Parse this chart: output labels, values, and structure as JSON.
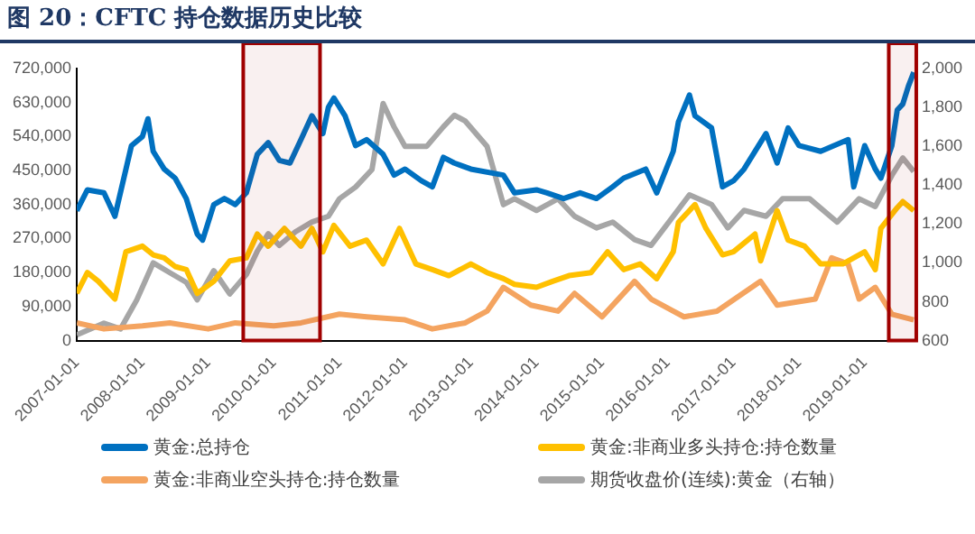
{
  "chart_data": {
    "type": "line",
    "title": "图 20：CFTC 持仓数据历史比较",
    "xlim": [
      "2007-01-01",
      "2019-10-15"
    ],
    "xticks": [
      {
        "value": "2007-01-01",
        "label": "2007-01-01"
      },
      {
        "value": "2008-01-01",
        "label": "2008-01-01"
      },
      {
        "value": "2009-01-01",
        "label": "2009-01-01"
      },
      {
        "value": "2010-01-01",
        "label": "2010-01-01"
      },
      {
        "value": "2011-01-01",
        "label": "2011-01-01"
      },
      {
        "value": "2012-01-01",
        "label": "2012-01-01"
      },
      {
        "value": "2013-01-01",
        "label": "2013-01-01"
      },
      {
        "value": "2014-01-01",
        "label": "2014-01-01"
      },
      {
        "value": "2015-01-01",
        "label": "2015-01-01"
      },
      {
        "value": "2016-01-01",
        "label": "2016-01-01"
      },
      {
        "value": "2017-01-01",
        "label": "2017-01-01"
      },
      {
        "value": "2018-01-01",
        "label": "2018-01-01"
      },
      {
        "value": "2019-01-01",
        "label": "2019-01-01"
      }
    ],
    "ylim": [
      0,
      720000
    ],
    "yticks": [
      0,
      {
        "value": 90000,
        "label": "90,000"
      },
      {
        "value": 180000,
        "label": "180,000"
      },
      {
        "value": 270000,
        "label": "270,000"
      },
      {
        "value": 360000,
        "label": "360,000"
      },
      {
        "value": 450000,
        "label": "450,000"
      },
      {
        "value": 540000,
        "label": "540,000"
      },
      {
        "value": 630000,
        "label": "630,000"
      },
      {
        "value": 720000,
        "label": "720,000"
      }
    ],
    "y2lim": [
      600,
      2000
    ],
    "y2ticks": [
      600,
      800,
      {
        "value": 1000,
        "label": "1,000"
      },
      {
        "value": 1200,
        "label": "1,200"
      },
      {
        "value": 1400,
        "label": "1,400"
      },
      {
        "value": 1600,
        "label": "1,600"
      },
      {
        "value": 1800,
        "label": "1,800"
      },
      {
        "value": 2000,
        "label": "2,000"
      }
    ],
    "grid": false,
    "legend": "bottom",
    "marker": "none",
    "line_style": "solid",
    "series": [
      {
        "name": "黄金:总持仓",
        "color": "#0070c0",
        "x": [
          "2007-01",
          "2007-03",
          "2007-06",
          "2007-08",
          "2007-11",
          "2008-01",
          "2008-02",
          "2008-03",
          "2008-05",
          "2008-07",
          "2008-09",
          "2008-11",
          "2008-12",
          "2009-02",
          "2009-04",
          "2009-06",
          "2009-08",
          "2009-10",
          "2009-12",
          "2010-02",
          "2010-04",
          "2010-06",
          "2010-08",
          "2010-10",
          "2010-11",
          "2010-12",
          "2011-02",
          "2011-04",
          "2011-06",
          "2011-09",
          "2011-11",
          "2012-01",
          "2012-04",
          "2012-06",
          "2012-08",
          "2012-10",
          "2013-01",
          "2013-07",
          "2013-09",
          "2014-01",
          "2014-03",
          "2014-06",
          "2014-09",
          "2014-12",
          "2015-03",
          "2015-05",
          "2015-09",
          "2015-11",
          "2016-02",
          "2016-03",
          "2016-05",
          "2016-06",
          "2016-09",
          "2016-11",
          "2017-01",
          "2017-03",
          "2017-07",
          "2017-09",
          "2017-11",
          "2018-01",
          "2018-05",
          "2018-10",
          "2018-11",
          "2019-01",
          "2019-03",
          "2019-04",
          "2019-06",
          "2019-07",
          "2019-08",
          "2019-09",
          "2019-10"
        ],
        "values": [
          344000,
          399000,
          391000,
          329000,
          516000,
          540000,
          587000,
          501000,
          454000,
          430000,
          376000,
          282000,
          266000,
          360000,
          376000,
          360000,
          391000,
          493000,
          524000,
          477000,
          470000,
          532000,
          595000,
          548000,
          618000,
          642000,
          595000,
          516000,
          532000,
          493000,
          438000,
          454000,
          423000,
          407000,
          485000,
          470000,
          454000,
          438000,
          391000,
          399000,
          391000,
          376000,
          391000,
          376000,
          407000,
          430000,
          454000,
          391000,
          501000,
          579000,
          650000,
          595000,
          563000,
          407000,
          423000,
          454000,
          548000,
          470000,
          563000,
          516000,
          501000,
          532000,
          407000,
          516000,
          454000,
          430000,
          516000,
          610000,
          626000,
          673000,
          710000
        ]
      },
      {
        "name": "黄金:非商业多头持仓:持仓数量",
        "color": "#ffc000",
        "x": [
          "2007-01",
          "2007-03",
          "2007-05",
          "2007-08",
          "2007-10",
          "2008-01",
          "2008-03",
          "2008-05",
          "2008-07",
          "2008-09",
          "2008-11",
          "2009-02",
          "2009-05",
          "2009-08",
          "2009-10",
          "2009-12",
          "2010-03",
          "2010-06",
          "2010-08",
          "2010-10",
          "2010-12",
          "2011-03",
          "2011-06",
          "2011-09",
          "2011-12",
          "2012-03",
          "2012-06",
          "2012-09",
          "2013-01",
          "2013-04",
          "2013-07",
          "2013-09",
          "2014-01",
          "2014-04",
          "2014-07",
          "2014-11",
          "2015-02",
          "2015-05",
          "2015-08",
          "2015-11",
          "2016-02",
          "2016-03",
          "2016-06",
          "2016-08",
          "2016-11",
          "2017-01",
          "2017-05",
          "2017-06",
          "2017-09",
          "2017-11",
          "2018-02",
          "2018-05",
          "2018-09",
          "2018-11",
          "2019-01",
          "2019-03",
          "2019-04",
          "2019-07",
          "2019-08",
          "2019-10"
        ],
        "values": [
          125000,
          180000,
          157000,
          110000,
          235000,
          250000,
          227000,
          219000,
          196000,
          188000,
          125000,
          157000,
          211000,
          219000,
          282000,
          250000,
          297000,
          250000,
          297000,
          235000,
          305000,
          250000,
          266000,
          203000,
          297000,
          203000,
          188000,
          172000,
          203000,
          180000,
          164000,
          149000,
          141000,
          157000,
          172000,
          180000,
          235000,
          188000,
          203000,
          164000,
          235000,
          313000,
          360000,
          297000,
          227000,
          235000,
          282000,
          211000,
          344000,
          266000,
          250000,
          203000,
          203000,
          219000,
          235000,
          188000,
          297000,
          352000,
          368000,
          344000
        ]
      },
      {
        "name": "黄金:非商业空头持仓:持仓数量",
        "color": "#f4a460",
        "x": [
          "2007-01",
          "2007-06",
          "2008-01",
          "2008-06",
          "2009-01",
          "2009-06",
          "2010-01",
          "2010-06",
          "2011-01",
          "2011-06",
          "2012-01",
          "2012-06",
          "2012-12",
          "2013-04",
          "2013-07",
          "2013-12",
          "2014-05",
          "2014-08",
          "2015-01",
          "2015-07",
          "2015-10",
          "2016-02",
          "2016-04",
          "2016-10",
          "2017-06",
          "2017-09",
          "2018-04",
          "2018-07",
          "2018-10",
          "2018-12",
          "2019-03",
          "2019-06",
          "2019-10"
        ],
        "values": [
          47000,
          31000,
          39000,
          47000,
          31000,
          47000,
          39000,
          47000,
          70000,
          63000,
          55000,
          31000,
          47000,
          78000,
          141000,
          94000,
          78000,
          125000,
          63000,
          157000,
          110000,
          78000,
          63000,
          78000,
          157000,
          94000,
          110000,
          219000,
          203000,
          110000,
          141000,
          70000,
          55000
        ]
      },
      {
        "name": "期货收盘价(连续):黄金（右轴）",
        "color": "#a6a6a6",
        "axis": "y2",
        "x": [
          "2007-01",
          "2007-06",
          "2007-09",
          "2007-12",
          "2008-03",
          "2008-06",
          "2008-09",
          "2008-11",
          "2009-02",
          "2009-05",
          "2009-08",
          "2009-10",
          "2009-12",
          "2010-02",
          "2010-05",
          "2010-08",
          "2010-11",
          "2011-01",
          "2011-04",
          "2011-07",
          "2011-09",
          "2011-11",
          "2012-01",
          "2012-05",
          "2012-08",
          "2012-10",
          "2012-12",
          "2013-04",
          "2013-07",
          "2013-09",
          "2014-01",
          "2014-05",
          "2014-08",
          "2014-12",
          "2015-03",
          "2015-07",
          "2015-10",
          "2016-02",
          "2016-05",
          "2016-09",
          "2016-12",
          "2017-03",
          "2017-07",
          "2017-10",
          "2018-03",
          "2018-08",
          "2018-12",
          "2019-03",
          "2019-06",
          "2019-08",
          "2019-10"
        ],
        "values": [
          630,
          690,
          660,
          810,
          1000,
          950,
          900,
          810,
          960,
          840,
          940,
          1060,
          1150,
          1090,
          1160,
          1210,
          1240,
          1330,
          1390,
          1480,
          1820,
          1700,
          1600,
          1600,
          1700,
          1760,
          1730,
          1600,
          1300,
          1330,
          1270,
          1330,
          1240,
          1180,
          1210,
          1120,
          1090,
          1240,
          1350,
          1300,
          1180,
          1270,
          1240,
          1330,
          1330,
          1210,
          1330,
          1290,
          1450,
          1540,
          1470
        ]
      }
    ],
    "bands": [
      {
        "axis": "x",
        "from": "2009-07-15",
        "to": "2010-09-15",
        "color": "#a00000"
      },
      {
        "axis": "x",
        "from": "2019-05-15",
        "to": "2019-10-15",
        "color": "#a00000"
      }
    ]
  }
}
